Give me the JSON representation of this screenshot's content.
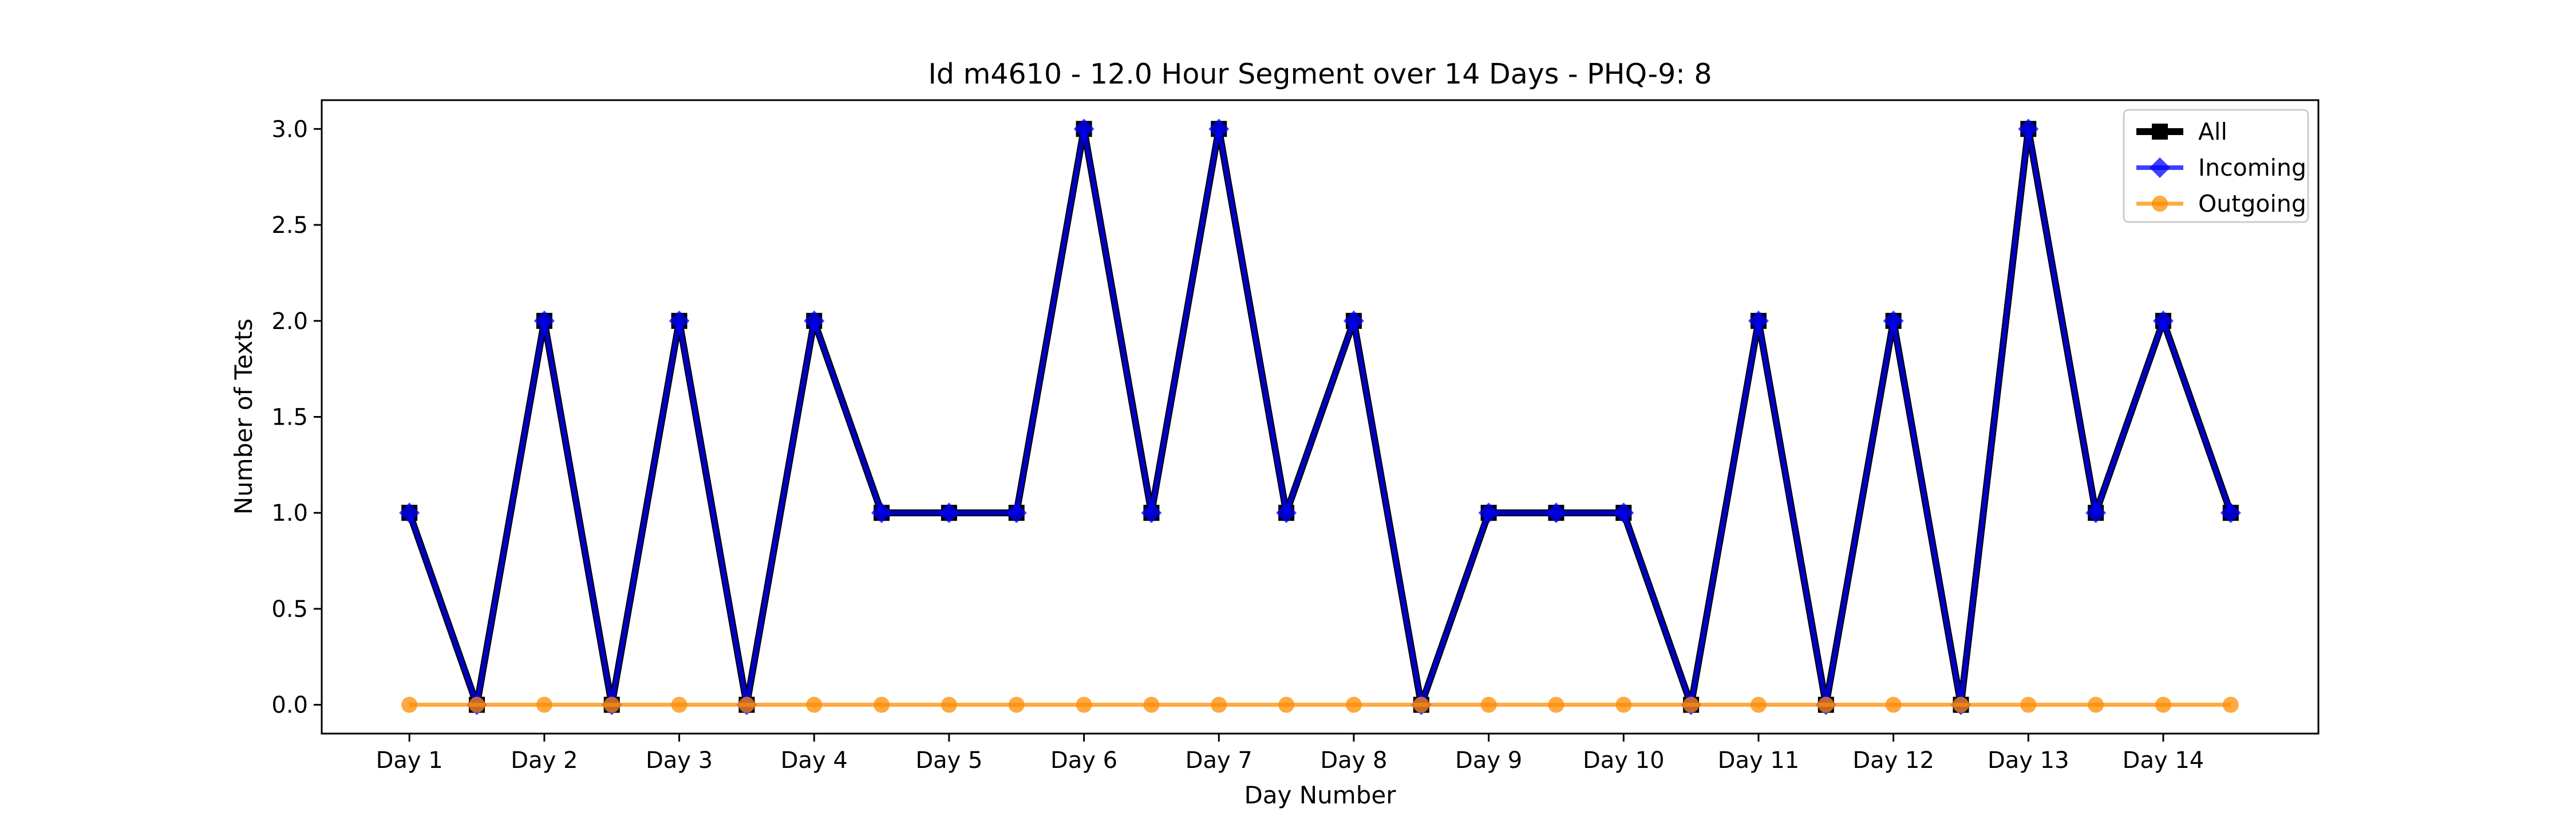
{
  "chart_data": {
    "type": "line",
    "title": "Id m4610 - 12.0 Hour Segment over 14 Days - PHQ-9: 8",
    "xlabel": "Day Number",
    "ylabel": "Number of Texts",
    "ylim": [
      -0.15,
      3.15
    ],
    "yticks": [
      0.0,
      0.5,
      1.0,
      1.5,
      2.0,
      2.5,
      3.0
    ],
    "ytick_labels": [
      "0.0",
      "0.5",
      "1.0",
      "1.5",
      "2.0",
      "2.5",
      "3.0"
    ],
    "x": [
      0,
      0.5,
      1,
      1.5,
      2,
      2.5,
      3,
      3.5,
      4,
      4.5,
      5,
      5.5,
      6,
      6.5,
      7,
      7.5,
      8,
      8.5,
      9,
      9.5,
      10,
      10.5,
      11,
      11.5,
      12,
      12.5,
      13,
      13.5
    ],
    "xlim": [
      -0.65,
      14.15
    ],
    "xticks": [
      0,
      1,
      2,
      3,
      4,
      5,
      6,
      7,
      8,
      9,
      10,
      11,
      12,
      13
    ],
    "xtick_labels": [
      "Day 1",
      "Day 2",
      "Day 3",
      "Day 4",
      "Day 5",
      "Day 6",
      "Day 7",
      "Day 8",
      "Day 9",
      "Day 10",
      "Day 11",
      "Day 12",
      "Day 13",
      "Day 14"
    ],
    "grid": false,
    "legend_position": "top-right",
    "series": [
      {
        "name": "All",
        "color": "#000000",
        "marker": "square",
        "values": [
          1,
          0,
          2,
          0,
          2,
          0,
          2,
          1,
          1,
          1,
          3,
          1,
          3,
          1,
          2,
          0,
          1,
          1,
          1,
          0,
          2,
          0,
          2,
          0,
          3,
          1,
          2,
          1
        ]
      },
      {
        "name": "Incoming",
        "color": "#0000ff",
        "marker": "diamond",
        "values": [
          1,
          0,
          2,
          0,
          2,
          0,
          2,
          1,
          1,
          1,
          3,
          1,
          3,
          1,
          2,
          0,
          1,
          1,
          1,
          0,
          2,
          0,
          2,
          0,
          3,
          1,
          2,
          1
        ]
      },
      {
        "name": "Outgoing",
        "color": "#ff8c00",
        "marker": "circle",
        "values": [
          0,
          0,
          0,
          0,
          0,
          0,
          0,
          0,
          0,
          0,
          0,
          0,
          0,
          0,
          0,
          0,
          0,
          0,
          0,
          0,
          0,
          0,
          0,
          0,
          0,
          0,
          0,
          0
        ]
      }
    ]
  }
}
